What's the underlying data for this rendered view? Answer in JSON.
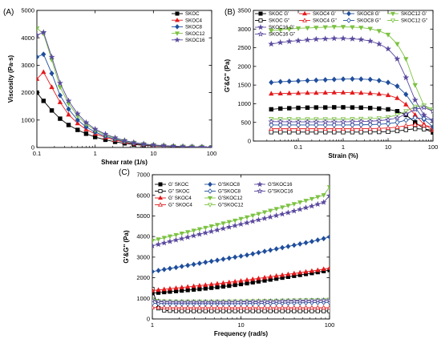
{
  "figure": {
    "panels": [
      {
        "id": "A",
        "label": "(A)"
      },
      {
        "id": "B",
        "label": "(B)"
      },
      {
        "id": "C",
        "label": "(C)"
      }
    ]
  },
  "chart_data": [
    {
      "panel": "(A)",
      "type": "line",
      "title": "",
      "xlabel": "Shear rate (1/s)",
      "ylabel": "Viscosity (Pa·s)",
      "xscale": "log",
      "xlim": [
        0.1,
        100
      ],
      "ylim": [
        0,
        5000
      ],
      "x_ticks": [
        0.1,
        1,
        10,
        100
      ],
      "x_tick_labels": [
        "0.1",
        "1",
        "10",
        "100"
      ],
      "y_ticks": [
        0,
        1000,
        2000,
        3000,
        4000,
        5000
      ],
      "y_tick_labels": [
        "0",
        "1000",
        "2000",
        "3000",
        "4000",
        "5000"
      ],
      "legend_position": "top-right",
      "series": [
        {
          "name": "SKOC",
          "color": "#000000",
          "marker": "square",
          "x": [
            0.1,
            0.13,
            0.18,
            0.25,
            0.35,
            0.5,
            0.7,
            1.0,
            1.5,
            2.2,
            3.2,
            4.6,
            6.8,
            10,
            15,
            22,
            32,
            46,
            68,
            100
          ],
          "y": [
            2000,
            1700,
            1350,
            1050,
            820,
            640,
            500,
            380,
            280,
            205,
            150,
            110,
            80,
            58,
            42,
            30,
            22,
            16,
            12,
            9
          ]
        },
        {
          "name": "SKOC4",
          "color": "#e41a1c",
          "marker": "triangle-up",
          "x": [
            0.1,
            0.13,
            0.18,
            0.25,
            0.35,
            0.5,
            0.7,
            1.0,
            1.5,
            2.2,
            3.2,
            4.6,
            6.8,
            10,
            15,
            22,
            32,
            46,
            68,
            100
          ],
          "y": [
            2500,
            2750,
            2200,
            1650,
            1200,
            880,
            660,
            500,
            370,
            270,
            195,
            140,
            100,
            72,
            52,
            38,
            28,
            20,
            15,
            11
          ]
        },
        {
          "name": "SKOC8",
          "color": "#1f4e9c",
          "marker": "diamond",
          "x": [
            0.1,
            0.13,
            0.18,
            0.25,
            0.35,
            0.5,
            0.7,
            1.0,
            1.5,
            2.2,
            3.2,
            4.6,
            6.8,
            10,
            15,
            22,
            32,
            46,
            68,
            100
          ],
          "y": [
            3300,
            3400,
            2700,
            1900,
            1400,
            1000,
            750,
            560,
            410,
            300,
            215,
            155,
            110,
            80,
            58,
            42,
            30,
            22,
            16,
            12
          ]
        },
        {
          "name": "SKOC12",
          "color": "#7cc242",
          "marker": "triangle-down",
          "x": [
            0.1,
            0.13,
            0.18,
            0.25,
            0.35,
            0.5,
            0.7,
            1.0,
            1.5,
            2.2,
            3.2,
            4.6,
            6.8,
            10,
            15,
            22,
            32,
            46,
            68,
            100
          ],
          "y": [
            4350,
            4150,
            3200,
            2200,
            1600,
            1150,
            850,
            630,
            460,
            335,
            240,
            172,
            122,
            88,
            64,
            46,
            33,
            24,
            18,
            13
          ]
        },
        {
          "name": "SKOC16",
          "color": "#5b4a9e",
          "marker": "star",
          "x": [
            0.1,
            0.13,
            0.18,
            0.25,
            0.35,
            0.5,
            0.7,
            1.0,
            1.5,
            2.2,
            3.2,
            4.6,
            6.8,
            10,
            15,
            22,
            32,
            46,
            68,
            100
          ],
          "y": [
            4100,
            4200,
            3300,
            2350,
            1700,
            1230,
            910,
            670,
            490,
            355,
            255,
            182,
            130,
            94,
            68,
            49,
            35,
            25,
            19,
            14
          ]
        }
      ]
    },
    {
      "panel": "(B)",
      "type": "line",
      "title": "",
      "xlabel": "Strain (%)",
      "ylabel": "G'&G'' (Pa)",
      "xscale": "log",
      "xlim": [
        0.01,
        100
      ],
      "ylim": [
        0,
        3500
      ],
      "x_ticks": [
        0.1,
        1,
        10,
        100
      ],
      "x_tick_labels": [
        "0.1",
        "1",
        "10",
        "100"
      ],
      "y_ticks": [
        0,
        500,
        1000,
        1500,
        2000,
        2500,
        3000,
        3500
      ],
      "y_tick_labels": [
        "0",
        "500",
        "1000",
        "1500",
        "2000",
        "2500",
        "3000",
        "3500"
      ],
      "legend_position": "top",
      "x": [
        0.025,
        0.04,
        0.063,
        0.1,
        0.16,
        0.25,
        0.4,
        0.63,
        1.0,
        1.6,
        2.5,
        4,
        6.3,
        10,
        16,
        25,
        40,
        63,
        100
      ],
      "series": [
        {
          "name": "SKOC G'",
          "color": "#000000",
          "marker": "square",
          "filled": true,
          "y": [
            850,
            870,
            880,
            890,
            895,
            900,
            900,
            905,
            905,
            900,
            895,
            885,
            870,
            850,
            800,
            700,
            500,
            330,
            230
          ]
        },
        {
          "name": "SKOC G''",
          "color": "#000000",
          "marker": "square",
          "filled": false,
          "y": [
            240,
            240,
            240,
            240,
            240,
            240,
            240,
            240,
            240,
            240,
            240,
            242,
            245,
            250,
            270,
            300,
            330,
            320,
            290
          ]
        },
        {
          "name": "SKOC4 G'",
          "color": "#e41a1c",
          "marker": "triangle-up",
          "filled": true,
          "y": [
            1270,
            1275,
            1280,
            1285,
            1290,
            1290,
            1295,
            1300,
            1300,
            1295,
            1290,
            1280,
            1260,
            1230,
            1150,
            980,
            700,
            450,
            290
          ]
        },
        {
          "name": "SKOC4 G''",
          "color": "#e41a1c",
          "marker": "triangle-up",
          "filled": false,
          "y": [
            330,
            330,
            330,
            330,
            330,
            330,
            330,
            330,
            330,
            330,
            332,
            335,
            340,
            350,
            375,
            410,
            440,
            420,
            380
          ]
        },
        {
          "name": "SKOC8 G'",
          "color": "#1f4e9c",
          "marker": "diamond",
          "filled": true,
          "y": [
            1570,
            1590,
            1600,
            1610,
            1620,
            1630,
            1640,
            1650,
            1660,
            1665,
            1660,
            1650,
            1620,
            1570,
            1470,
            1250,
            900,
            580,
            380
          ]
        },
        {
          "name": "SKOC8 G''",
          "color": "#1f4e9c",
          "marker": "diamond",
          "filled": false,
          "y": [
            430,
            430,
            430,
            430,
            430,
            430,
            430,
            430,
            430,
            432,
            435,
            440,
            450,
            465,
            500,
            560,
            620,
            600,
            560
          ]
        },
        {
          "name": "SKOC12 G'",
          "color": "#7cc242",
          "marker": "triangle-down",
          "filled": true,
          "y": [
            2960,
            2980,
            3000,
            3020,
            3030,
            3040,
            3050,
            3060,
            3060,
            3050,
            3040,
            3010,
            2950,
            2850,
            2600,
            2200,
            1500,
            950,
            800
          ]
        },
        {
          "name": "SKOC12 G''",
          "color": "#7cc242",
          "marker": "triangle-down",
          "filled": false,
          "y": [
            590,
            590,
            590,
            585,
            585,
            585,
            585,
            585,
            585,
            590,
            595,
            600,
            610,
            640,
            700,
            800,
            920,
            950,
            850
          ]
        },
        {
          "name": "SKOC16 G'",
          "color": "#5b4a9e",
          "marker": "star",
          "filled": true,
          "y": [
            2600,
            2640,
            2670,
            2690,
            2710,
            2730,
            2740,
            2750,
            2750,
            2740,
            2720,
            2680,
            2600,
            2470,
            2200,
            1700,
            1100,
            700,
            550
          ]
        },
        {
          "name": "SKOC16 G''",
          "color": "#5b4a9e",
          "marker": "star",
          "filled": false,
          "y": [
            520,
            520,
            515,
            515,
            515,
            515,
            515,
            515,
            515,
            520,
            525,
            530,
            545,
            570,
            620,
            720,
            850,
            900,
            800
          ]
        }
      ]
    },
    {
      "panel": "(C)",
      "type": "line",
      "title": "",
      "xlabel": "Frequency (rad/s)",
      "ylabel": "G'&G'' (Pa)",
      "xscale": "log",
      "xlim": [
        1,
        100
      ],
      "ylim": [
        0,
        7000
      ],
      "x_ticks": [
        1,
        10,
        100
      ],
      "x_tick_labels": [
        "1",
        "10",
        "100"
      ],
      "y_ticks": [
        0,
        1000,
        2000,
        3000,
        4000,
        5000,
        6000,
        7000
      ],
      "y_tick_labels": [
        "0",
        "1000",
        "2000",
        "3000",
        "4000",
        "5000",
        "6000",
        "7000"
      ],
      "legend_position": "top-left",
      "x": [
        1,
        1.17,
        1.36,
        1.58,
        1.85,
        2.15,
        2.51,
        2.93,
        3.41,
        3.98,
        4.64,
        5.41,
        6.31,
        7.36,
        8.58,
        10,
        11.7,
        13.6,
        15.8,
        18.5,
        21.5,
        25.1,
        29.3,
        34.1,
        39.8,
        46.4,
        54.1,
        63.1,
        73.6,
        85.8,
        100
      ],
      "series": [
        {
          "name": "G' SKOC",
          "color": "#000000",
          "marker": "square",
          "filled": true,
          "y": [
            1250,
            1275,
            1300,
            1325,
            1350,
            1375,
            1400,
            1425,
            1450,
            1480,
            1510,
            1540,
            1575,
            1610,
            1650,
            1690,
            1730,
            1775,
            1820,
            1865,
            1910,
            1955,
            2000,
            2045,
            2090,
            2135,
            2180,
            2225,
            2270,
            2320,
            2370
          ]
        },
        {
          "name": "G'' SKOC",
          "color": "#000000",
          "marker": "square",
          "filled": false,
          "y": [
            1450,
            520,
            420,
            400,
            390,
            385,
            385,
            385,
            385,
            385,
            385,
            385,
            385,
            385,
            385,
            385,
            385,
            385,
            385,
            385,
            385,
            385,
            385,
            385,
            385,
            385,
            385,
            385,
            385,
            385,
            385
          ]
        },
        {
          "name": "G' SKOC4",
          "color": "#e41a1c",
          "marker": "triangle-up",
          "filled": true,
          "y": [
            1380,
            1410,
            1440,
            1470,
            1500,
            1530,
            1560,
            1590,
            1620,
            1650,
            1680,
            1710,
            1745,
            1780,
            1815,
            1850,
            1890,
            1930,
            1970,
            2010,
            2050,
            2090,
            2130,
            2170,
            2210,
            2250,
            2290,
            2330,
            2370,
            2420,
            2470
          ]
        },
        {
          "name": "G'' SKOC4",
          "color": "#e41a1c",
          "marker": "triangle-up",
          "filled": false,
          "y": [
            560,
            555,
            550,
            545,
            545,
            545,
            545,
            545,
            545,
            545,
            545,
            545,
            545,
            545,
            545,
            545,
            545,
            545,
            545,
            545,
            545,
            545,
            545,
            545,
            545,
            545,
            545,
            545,
            545,
            545,
            545
          ]
        },
        {
          "name": "G'SKOC8",
          "color": "#1f4e9c",
          "marker": "diamond",
          "filled": true,
          "y": [
            2300,
            2350,
            2400,
            2450,
            2500,
            2550,
            2600,
            2650,
            2700,
            2750,
            2800,
            2850,
            2900,
            2950,
            3000,
            3050,
            3100,
            3160,
            3220,
            3280,
            3340,
            3400,
            3460,
            3520,
            3580,
            3640,
            3700,
            3760,
            3830,
            3900,
            3980
          ]
        },
        {
          "name": "G\"SKOC8",
          "color": "#1f4e9c",
          "marker": "diamond",
          "filled": false,
          "y": [
            760,
            750,
            745,
            740,
            740,
            740,
            740,
            740,
            740,
            740,
            740,
            740,
            740,
            740,
            740,
            745,
            745,
            750,
            750,
            755,
            760,
            765,
            770,
            775,
            780,
            785,
            790,
            795,
            800,
            805,
            810
          ]
        },
        {
          "name": "G'SKOC12",
          "color": "#7cc242",
          "marker": "triangle-down",
          "filled": true,
          "y": [
            3800,
            3870,
            3940,
            4010,
            4080,
            4150,
            4220,
            4290,
            4360,
            4430,
            4500,
            4570,
            4640,
            4710,
            4780,
            4860,
            4940,
            5020,
            5100,
            5180,
            5260,
            5340,
            5420,
            5500,
            5580,
            5660,
            5740,
            5830,
            5920,
            6010,
            6400
          ]
        },
        {
          "name": "G\"SKOC12",
          "color": "#7cc242",
          "marker": "triangle-down",
          "filled": false,
          "y": [
            950,
            880,
            860,
            855,
            850,
            850,
            850,
            850,
            850,
            850,
            850,
            850,
            852,
            855,
            858,
            862,
            866,
            870,
            875,
            880,
            885,
            890,
            895,
            900,
            905,
            910,
            915,
            920,
            925,
            930,
            935
          ]
        },
        {
          "name": "G'SKOC16",
          "color": "#5b4a9e",
          "marker": "star",
          "filled": true,
          "y": [
            3550,
            3620,
            3690,
            3760,
            3830,
            3900,
            3970,
            4040,
            4110,
            4180,
            4250,
            4320,
            4390,
            4460,
            4530,
            4600,
            4670,
            4740,
            4810,
            4880,
            4950,
            5020,
            5090,
            5160,
            5240,
            5320,
            5400,
            5480,
            5570,
            5660,
            5980
          ]
        },
        {
          "name": "G\"SKOC16",
          "color": "#5b4a9e",
          "marker": "star",
          "filled": false,
          "y": [
            900,
            850,
            830,
            825,
            820,
            820,
            820,
            820,
            820,
            820,
            820,
            820,
            822,
            825,
            828,
            832,
            836,
            840,
            845,
            850,
            855,
            860,
            865,
            870,
            875,
            880,
            885,
            890,
            895,
            900,
            905
          ]
        }
      ]
    }
  ]
}
